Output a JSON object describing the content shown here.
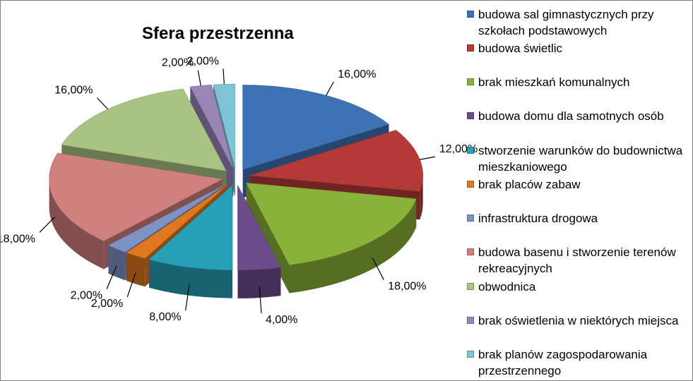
{
  "chart_data": {
    "type": "pie",
    "title": "Sfera przestrzenna",
    "three_d": true,
    "exploded": true,
    "legend_position": "right",
    "slices": [
      {
        "label": "budowa sal gimnastycznych przy szkołach podstawowych",
        "value": 16,
        "display": "16,00%",
        "color": "#3F72B5"
      },
      {
        "label": "budowa świetlic",
        "value": 12,
        "display": "12,00%",
        "color": "#B43A38"
      },
      {
        "label": "brak mieszkań komunalnych",
        "value": 18,
        "display": "18,00%",
        "color": "#8AB138"
      },
      {
        "label": "budowa domu dla samotnych osób",
        "value": 4,
        "display": "4,00%",
        "color": "#6D4C8C"
      },
      {
        "label": "stworzenie warunków do budownictwa mieszkaniowego",
        "value": 8,
        "display": "8,00%",
        "color": "#27A0B8"
      },
      {
        "label": "brak placów zabaw",
        "value": 2,
        "display": "2,00%",
        "color": "#E0781F"
      },
      {
        "label": "infrastruktura drogowa",
        "value": 2,
        "display": "2,00%",
        "color": "#7D93C4"
      },
      {
        "label": "budowa basenu i stworzenie terenów rekreacyjnych",
        "value": 18,
        "display": "18,00%",
        "color": "#D2807F"
      },
      {
        "label": "obwodnica",
        "value": 16,
        "display": "16,00%",
        "color": "#A9C384"
      },
      {
        "label": "brak oświetlenia w niektórych miejsca",
        "value": 2,
        "display": "2,00%",
        "color": "#9A85B8"
      },
      {
        "label": "brak planów zagospodarowania przestrzennego",
        "value": 2,
        "display": "2,00%",
        "color": "#7EC3D6"
      }
    ]
  }
}
